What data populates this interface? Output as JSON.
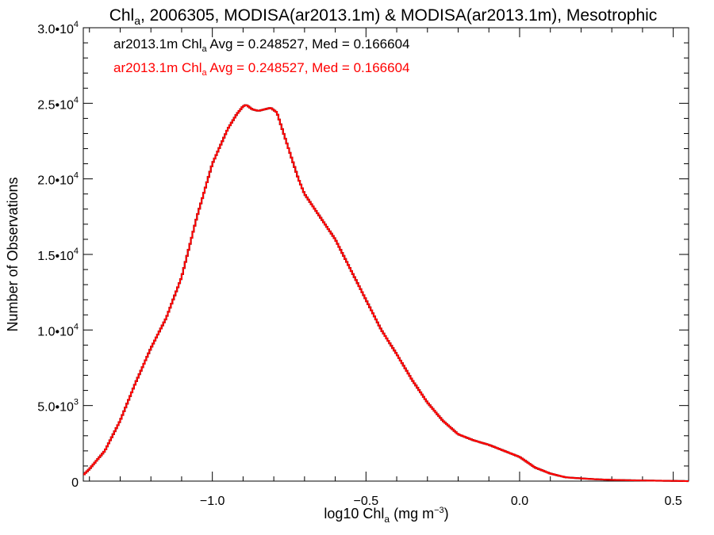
{
  "chart_data": {
    "type": "line",
    "title": "Chl_a, 2006305, MODISA(ar2013.1m) & MODISA(ar2013.1m), Mesotrophic",
    "title_parts": {
      "pre": "Chl",
      "sub": "a",
      "post": ", 2006305, MODISA(ar2013.1m) & MODISA(ar2013.1m), Mesotrophic"
    },
    "xlabel": "log10 Chl_a (mg m^-3)",
    "xlabel_parts": {
      "pre": "log10 Chl",
      "sub": "a",
      "mid": " (mg m",
      "sup": "−3",
      "post": ")"
    },
    "ylabel": "Number of Observations",
    "xlim": [
      -1.42,
      0.55
    ],
    "ylim": [
      0,
      30000
    ],
    "x_ticks": [
      {
        "value": -1.0,
        "label": "−1.0"
      },
      {
        "value": -0.5,
        "label": "−0.5"
      },
      {
        "value": 0.0,
        "label": "0.0"
      },
      {
        "value": 0.5,
        "label": "0.5"
      }
    ],
    "y_ticks": [
      {
        "value": 0,
        "mant": "0",
        "exp": ""
      },
      {
        "value": 5000,
        "mant": "5.0•10",
        "exp": "3"
      },
      {
        "value": 10000,
        "mant": "1.0•10",
        "exp": "4"
      },
      {
        "value": 15000,
        "mant": "1.5•10",
        "exp": "4"
      },
      {
        "value": 20000,
        "mant": "2.0•10",
        "exp": "4"
      },
      {
        "value": 25000,
        "mant": "2.5•10",
        "exp": "4"
      },
      {
        "value": 30000,
        "mant": "3.0•10",
        "exp": "4"
      }
    ],
    "legend_position": "top-left",
    "grid": false,
    "annotations": [
      {
        "pre": "ar2013.1m Chl",
        "sub": "a",
        "post": " Avg = 0.248527, Med = 0.166604",
        "color": "#000000"
      },
      {
        "pre": "ar2013.1m Chl",
        "sub": "a",
        "post": " Avg = 0.248527, Med = 0.166604",
        "color": "#ff0000"
      }
    ],
    "series": [
      {
        "color": "#000000",
        "x": [
          -1.42,
          -1.4,
          -1.35,
          -1.3,
          -1.25,
          -1.2,
          -1.15,
          -1.1,
          -1.05,
          -1.0,
          -0.95,
          -0.92,
          -0.9,
          -0.89,
          -0.87,
          -0.85,
          -0.83,
          -0.81,
          -0.79,
          -0.76,
          -0.72,
          -0.7,
          -0.65,
          -0.6,
          -0.55,
          -0.5,
          -0.45,
          -0.4,
          -0.35,
          -0.3,
          -0.25,
          -0.2,
          -0.15,
          -0.1,
          -0.05,
          0.0,
          0.05,
          0.1,
          0.15,
          0.2,
          0.25,
          0.3,
          0.4,
          0.55
        ],
        "y": [
          400,
          800,
          2000,
          4000,
          6500,
          8800,
          10800,
          13500,
          17500,
          21000,
          23300,
          24300,
          24800,
          24900,
          24600,
          24500,
          24600,
          24700,
          24400,
          22500,
          20000,
          19000,
          17500,
          16000,
          14000,
          12000,
          10000,
          8400,
          6700,
          5200,
          4000,
          3100,
          2700,
          2400,
          2000,
          1600,
          900,
          500,
          250,
          180,
          120,
          80,
          40,
          0
        ]
      },
      {
        "color": "#ff0000",
        "x": [
          -1.42,
          -1.4,
          -1.35,
          -1.3,
          -1.25,
          -1.2,
          -1.15,
          -1.1,
          -1.05,
          -1.0,
          -0.95,
          -0.92,
          -0.9,
          -0.89,
          -0.87,
          -0.85,
          -0.83,
          -0.81,
          -0.79,
          -0.76,
          -0.72,
          -0.7,
          -0.65,
          -0.6,
          -0.55,
          -0.5,
          -0.45,
          -0.4,
          -0.35,
          -0.3,
          -0.25,
          -0.2,
          -0.15,
          -0.1,
          -0.05,
          0.0,
          0.05,
          0.1,
          0.15,
          0.2,
          0.25,
          0.3,
          0.4,
          0.55
        ],
        "y": [
          400,
          800,
          2000,
          4000,
          6500,
          8800,
          10800,
          13500,
          17500,
          21000,
          23300,
          24300,
          24800,
          24900,
          24600,
          24500,
          24600,
          24700,
          24400,
          22500,
          20000,
          19000,
          17500,
          16000,
          14000,
          12000,
          10000,
          8400,
          6700,
          5200,
          4000,
          3100,
          2700,
          2400,
          2000,
          1600,
          900,
          500,
          250,
          180,
          120,
          80,
          40,
          0
        ]
      }
    ]
  }
}
